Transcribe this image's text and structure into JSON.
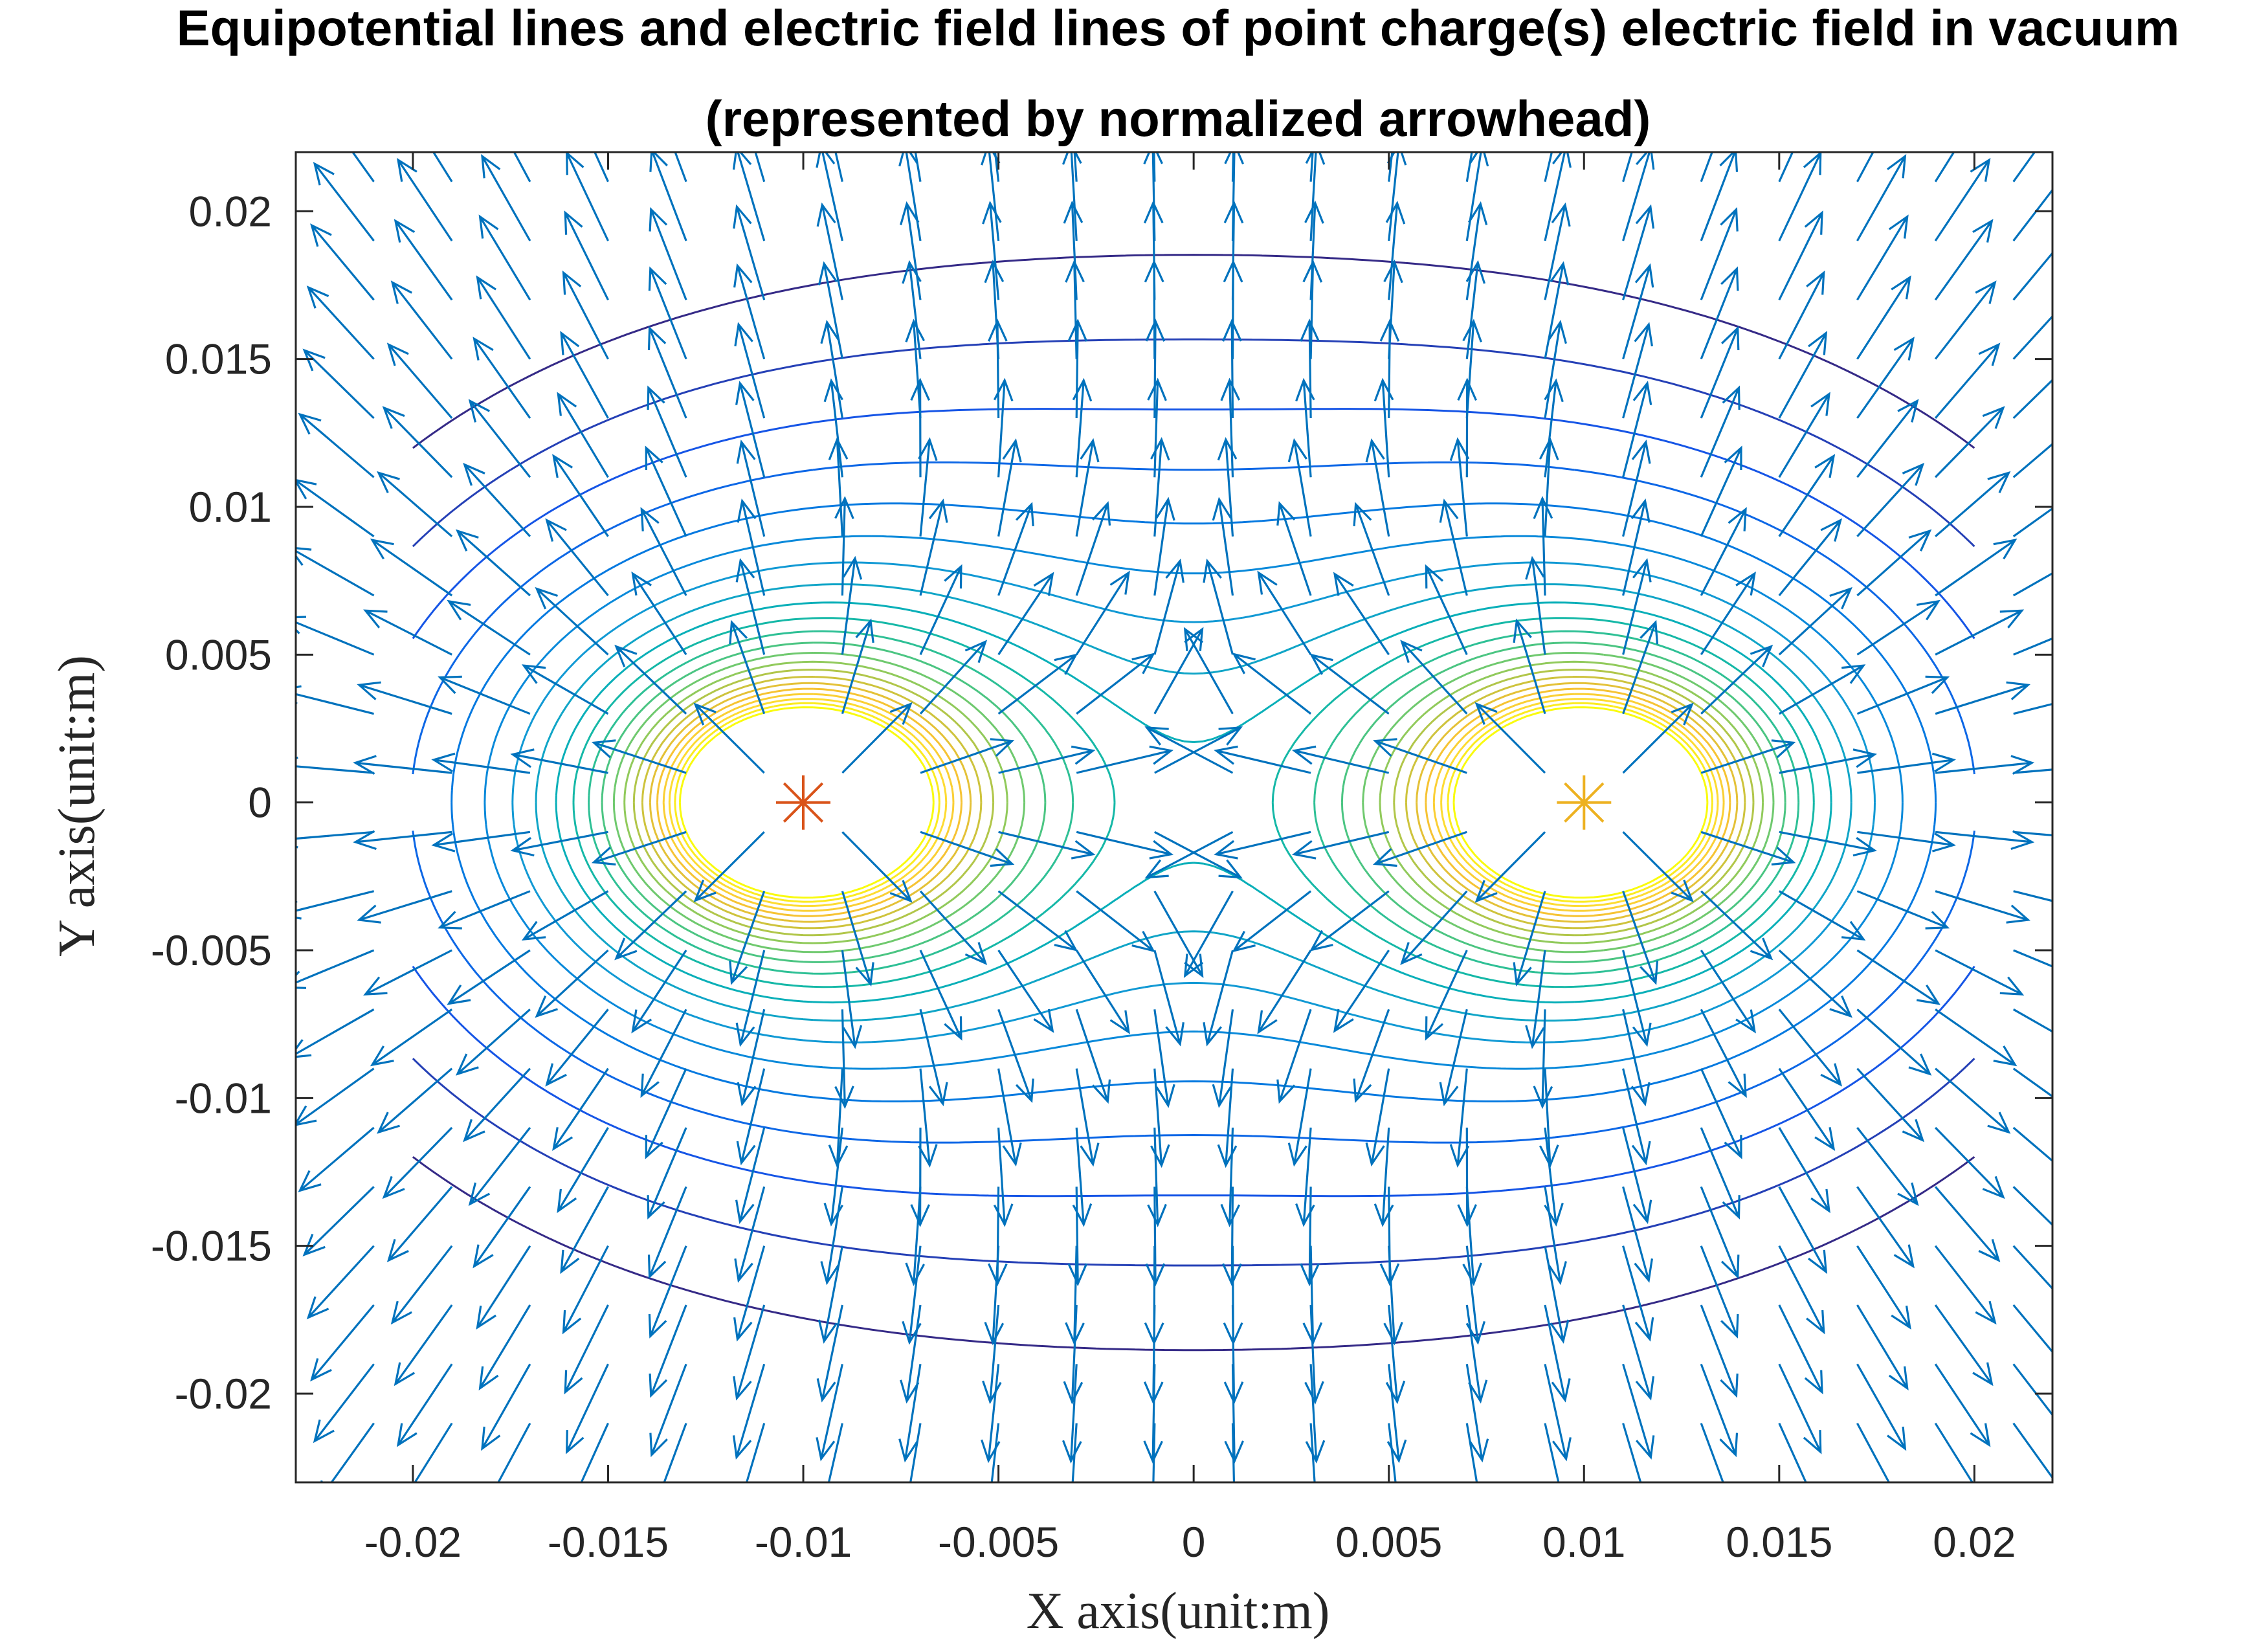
{
  "chart_data": {
    "type": "contour+quiver",
    "title": "Equipotential lines and electric field lines of point charge(s) electric field in vacuum",
    "subtitle": "(represented by normalized arrowhead)",
    "xlabel": "X axis(unit:m)",
    "ylabel": "Y axis(unit:m)",
    "xlim": [
      -0.023,
      0.022
    ],
    "ylim": [
      -0.023,
      0.022
    ],
    "xticks": [
      -0.02,
      -0.015,
      -0.01,
      -0.005,
      0,
      0.005,
      0.01,
      0.015,
      0.02
    ],
    "xtick_labels": [
      "-0.02",
      "-0.015",
      "-0.01",
      "-0.005",
      "0",
      "0.005",
      "0.01",
      "0.015",
      "0.02"
    ],
    "yticks": [
      0.02,
      0.015,
      0.01,
      0.005,
      0,
      -0.005,
      -0.01,
      -0.015,
      -0.02
    ],
    "ytick_labels": [
      "0.02",
      "0.015",
      "0.01",
      "0.005",
      "0",
      "-0.005",
      "-0.01",
      "-0.015",
      "-0.02"
    ],
    "charges": [
      {
        "x": -0.01,
        "y": 0,
        "marker": "asterisk",
        "color": "#d95319"
      },
      {
        "x": 0.01,
        "y": 0,
        "marker": "asterisk",
        "color": "#edb120"
      }
    ],
    "contour_region": {
      "x": [
        -0.02,
        0.02
      ],
      "y": [
        -0.02,
        0.02
      ]
    },
    "contour_levels": 22,
    "contour_potential_range": [
      95,
      360
    ],
    "quiver_grid": {
      "x_start": -0.021,
      "x_end": 0.021,
      "y_start": -0.021,
      "y_end": 0.021,
      "step": 0.002
    },
    "colors": {
      "arrow": "#0072bd",
      "axes": "#262626",
      "background": "#ffffff"
    },
    "grid": false
  }
}
